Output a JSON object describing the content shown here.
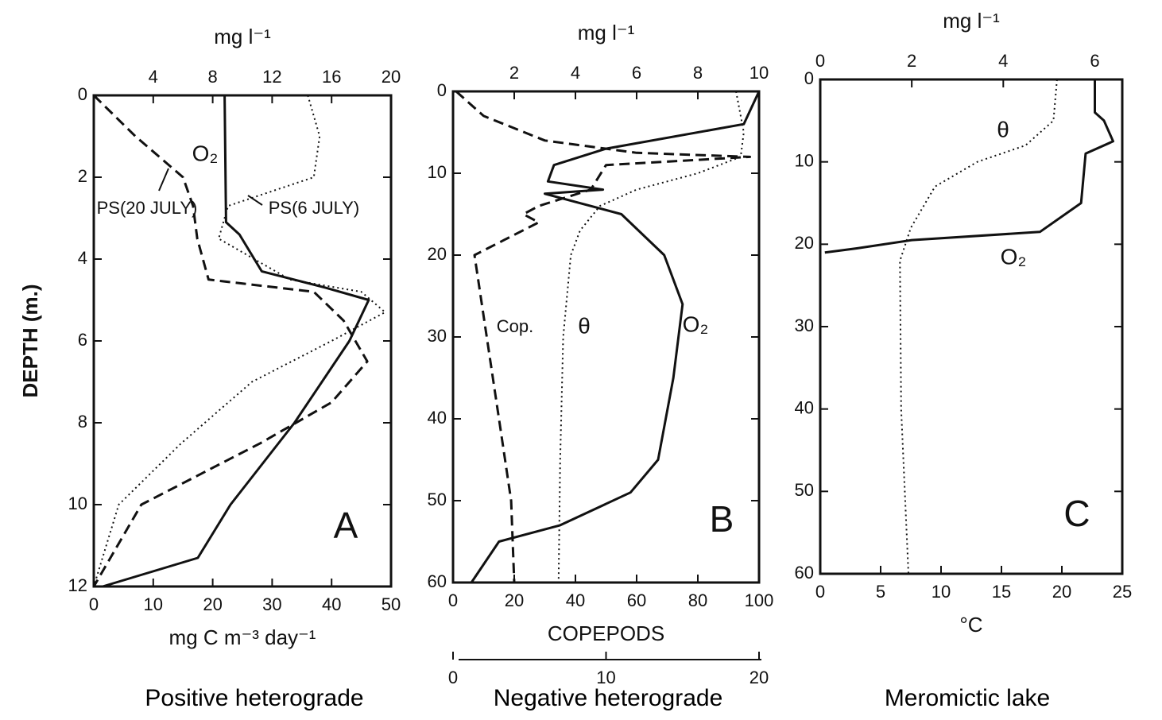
{
  "chart_data": [
    {
      "type": "line",
      "title": "Positive heterograde",
      "panel_label": "A",
      "ylabel": "DEPTH (m.)",
      "ylim": [
        0,
        12
      ],
      "yticks": [
        0,
        2,
        4,
        6,
        8,
        10,
        12
      ],
      "y_inverted": true,
      "xlabel": "mg C m⁻³ day⁻¹",
      "xlim": [
        0,
        50
      ],
      "xticks": [
        0,
        10,
        20,
        30,
        40,
        50
      ],
      "x2label": "mg l⁻¹",
      "x2lim": [
        0,
        20
      ],
      "x2ticks": [
        4,
        8,
        12,
        16,
        20
      ],
      "series": [
        {
          "name": "O₂",
          "axis": "x2",
          "style": "solid",
          "x": [
            8.8,
            8.9,
            9.8,
            11.3,
            15.6,
            18.5,
            17.2,
            13.5,
            9.2,
            7,
            0.6
          ],
          "y": [
            0,
            3.1,
            3.4,
            4.3,
            4.7,
            5.0,
            6,
            8,
            10,
            11.3,
            12
          ]
        },
        {
          "name": "PS(20 JULY)",
          "axis": "x",
          "style": "dashed",
          "x": [
            0,
            7,
            15,
            16.7,
            17.4,
            19.3,
            37,
            42,
            46,
            40,
            28,
            8,
            0
          ],
          "y": [
            0,
            1,
            2,
            2.7,
            3.5,
            4.5,
            4.8,
            5.5,
            6.5,
            7.5,
            8.5,
            10,
            12
          ]
        },
        {
          "name": "PS(6 JULY)",
          "axis": "x",
          "style": "dotted",
          "x": [
            36,
            38,
            37,
            22.6,
            21,
            33,
            45,
            49,
            40,
            26.6,
            14.7,
            4.2,
            0
          ],
          "y": [
            0,
            1,
            2,
            2.7,
            3.5,
            4.5,
            4.8,
            5.3,
            6,
            7,
            8.5,
            10,
            12
          ]
        }
      ]
    },
    {
      "type": "line",
      "title": "Negative heterograde",
      "panel_label": "B",
      "ylim": [
        0,
        60
      ],
      "yticks": [
        0,
        10,
        20,
        30,
        40,
        50,
        60
      ],
      "y_inverted": true,
      "xlabel": "COPEPODS",
      "xlim": [
        0,
        100
      ],
      "xticks": [
        0,
        20,
        40,
        60,
        80,
        100
      ],
      "x2label": "mg l⁻¹",
      "x2lim": [
        0,
        10
      ],
      "x2ticks": [
        2,
        4,
        6,
        8,
        10
      ],
      "x3lim": [
        0,
        20
      ],
      "x3ticks": [
        0,
        10,
        20
      ],
      "series": [
        {
          "name": "Cop.",
          "axis": "x",
          "style": "dashed",
          "x": [
            1,
            10,
            30,
            60,
            97,
            50,
            45,
            28,
            23,
            28,
            7,
            11,
            15,
            19,
            20
          ],
          "y": [
            0,
            3,
            6,
            7.5,
            8,
            9,
            12,
            14,
            15,
            16,
            20,
            30,
            40,
            50,
            60
          ]
        },
        {
          "name": "θ",
          "axis": "x3",
          "style": "dotted",
          "x": [
            18.5,
            19,
            18.8,
            16,
            12,
            9.6,
            8.3,
            7.7,
            7.2,
            7,
            6.9
          ],
          "y": [
            0,
            5,
            8,
            10,
            12,
            14,
            17,
            20,
            30,
            45,
            60
          ]
        },
        {
          "name": "O₂",
          "axis": "x2",
          "style": "solid",
          "x": [
            10,
            9.5,
            5,
            3.3,
            3.1,
            4.9,
            3,
            5.5,
            6.9,
            7.5,
            7.2,
            6.7,
            5.8,
            3.5,
            1.5,
            0.6
          ],
          "y": [
            0,
            4,
            7,
            9,
            11,
            12,
            12.5,
            15,
            20,
            26,
            35,
            45,
            49,
            53,
            55,
            60
          ]
        }
      ]
    },
    {
      "type": "line",
      "title": "Meromictic lake",
      "panel_label": "C",
      "ylim": [
        0,
        60
      ],
      "yticks": [
        0,
        10,
        20,
        30,
        40,
        50,
        60
      ],
      "y_inverted": true,
      "xlabel": "°C",
      "xlim": [
        0,
        25
      ],
      "xticks": [
        0,
        5,
        10,
        15,
        20,
        25
      ],
      "x2label": "mg l⁻¹",
      "x2lim": [
        0,
        6.6
      ],
      "x2ticks": [
        0,
        2,
        4,
        6
      ],
      "series": [
        {
          "name": "θ",
          "axis": "x",
          "style": "dotted",
          "x": [
            19.6,
            19.3,
            17,
            13,
            9.5,
            7.5,
            6.6,
            6.7,
            7.3
          ],
          "y": [
            0,
            5,
            8,
            10,
            13,
            18,
            22,
            40,
            60
          ]
        },
        {
          "name": "O₂",
          "axis": "x2",
          "style": "solid",
          "x": [
            6.0,
            6.0,
            6.2,
            6.4,
            5.8,
            5.7,
            4.8,
            2,
            0.8,
            0.1
          ],
          "y": [
            0,
            4,
            5,
            7.5,
            9,
            15,
            18.5,
            19.5,
            20.5,
            21
          ]
        }
      ]
    }
  ]
}
